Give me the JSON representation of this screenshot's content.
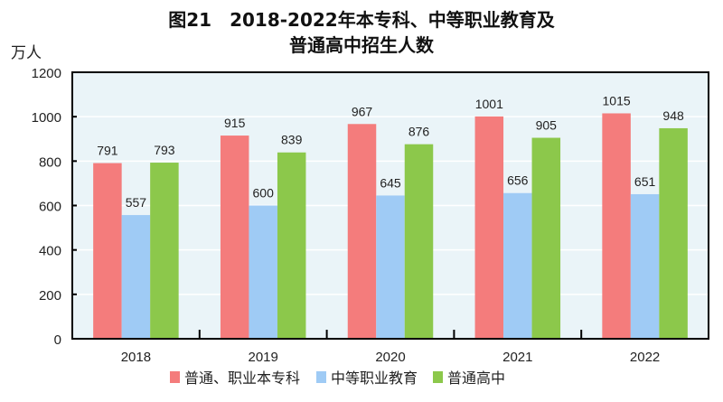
{
  "chart_data": {
    "type": "bar",
    "title": "图21　2018-2022年本专科、中等职业教育及",
    "title_line2": "普通高中招生人数",
    "ylabel": "万人",
    "xlabel": "",
    "ylim": [
      0,
      1200
    ],
    "yticks": [
      "0",
      "200",
      "400",
      "600",
      "800",
      "1000",
      "1200"
    ],
    "categories": [
      "2018",
      "2019",
      "2020",
      "2021",
      "2022"
    ],
    "grid": true,
    "legend_position": "bottom",
    "background": "#eaf4f8",
    "series": [
      {
        "name": "普通、职业本专科",
        "color": "#f47c7c",
        "values": [
          791,
          915,
          967,
          1001,
          1015
        ]
      },
      {
        "name": "中等职业教育",
        "color": "#9fcbf5",
        "values": [
          557,
          600,
          645,
          656,
          651
        ]
      },
      {
        "name": "普通高中",
        "color": "#8cc84b",
        "values": [
          793,
          839,
          876,
          905,
          948
        ]
      }
    ]
  }
}
